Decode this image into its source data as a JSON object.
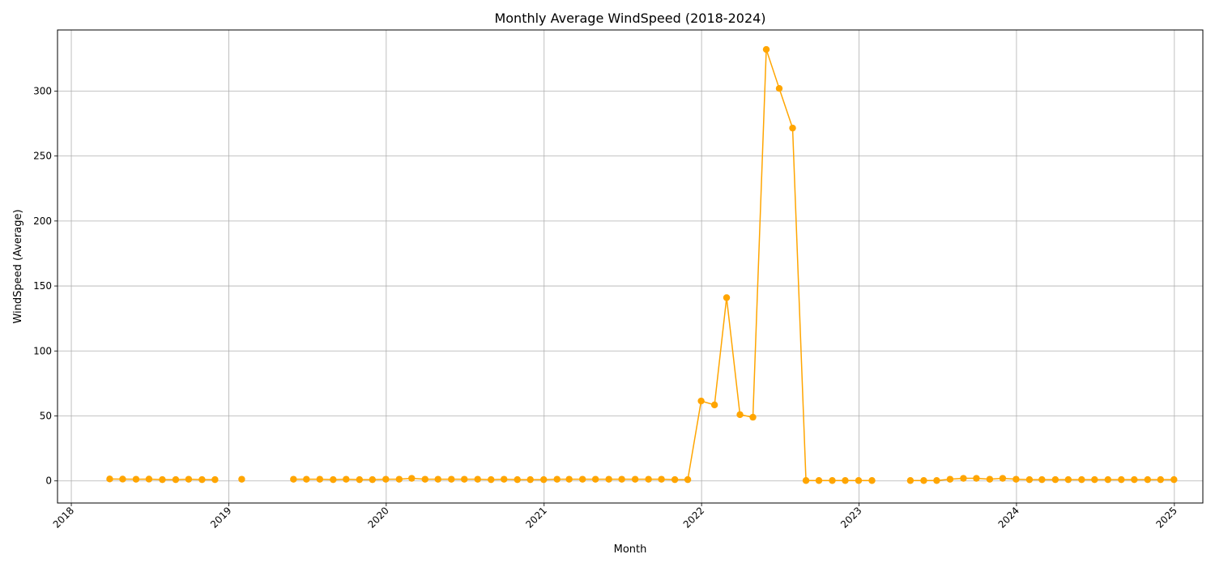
{
  "chart_data": {
    "type": "line",
    "title": "Monthly Average WindSpeed (2018-2024)",
    "xlabel": "Month",
    "ylabel": "WindSpeed (Average)",
    "x_axis": "date",
    "xlim": [
      "2017-11-30",
      "2025-03-08"
    ],
    "ylim": [
      -17,
      347
    ],
    "xticks": [
      "2018",
      "2019",
      "2020",
      "2021",
      "2022",
      "2023",
      "2024",
      "2025"
    ],
    "yticks": [
      0,
      50,
      100,
      150,
      200,
      250,
      300
    ],
    "grid": true,
    "color": "#FFA500",
    "marker": "circle",
    "series": [
      {
        "segments": [
          [
            [
              "2018-03-31",
              1.5
            ],
            [
              "2018-04-30",
              1.4
            ],
            [
              "2018-05-31",
              1.3
            ],
            [
              "2018-06-30",
              1.4
            ],
            [
              "2018-07-31",
              1.0
            ],
            [
              "2018-08-31",
              1.0
            ],
            [
              "2018-09-30",
              1.3
            ],
            [
              "2018-10-31",
              1.0
            ],
            [
              "2018-11-30",
              1.0
            ]
          ],
          [
            [
              "2019-01-31",
              1.3
            ]
          ],
          [
            [
              "2019-05-31",
              1.3
            ],
            [
              "2019-06-30",
              1.3
            ],
            [
              "2019-07-31",
              1.3
            ],
            [
              "2019-08-31",
              1.0
            ],
            [
              "2019-09-30",
              1.3
            ],
            [
              "2019-10-31",
              1.0
            ],
            [
              "2019-11-30",
              1.0
            ],
            [
              "2019-12-31",
              1.3
            ],
            [
              "2020-01-31",
              1.3
            ],
            [
              "2020-02-29",
              2.0
            ],
            [
              "2020-03-31",
              1.3
            ],
            [
              "2020-04-30",
              1.3
            ],
            [
              "2020-05-31",
              1.3
            ],
            [
              "2020-06-30",
              1.3
            ],
            [
              "2020-07-31",
              1.3
            ],
            [
              "2020-08-31",
              1.0
            ],
            [
              "2020-09-30",
              1.3
            ],
            [
              "2020-10-31",
              1.0
            ],
            [
              "2020-11-30",
              1.0
            ],
            [
              "2020-12-31",
              1.0
            ],
            [
              "2021-01-31",
              1.3
            ],
            [
              "2021-02-28",
              1.3
            ],
            [
              "2021-03-31",
              1.3
            ],
            [
              "2021-04-30",
              1.3
            ],
            [
              "2021-05-31",
              1.3
            ],
            [
              "2021-06-30",
              1.3
            ],
            [
              "2021-07-31",
              1.3
            ],
            [
              "2021-08-31",
              1.3
            ],
            [
              "2021-09-30",
              1.3
            ],
            [
              "2021-10-31",
              1.0
            ],
            [
              "2021-11-30",
              1.0
            ],
            [
              "2021-12-31",
              61.5
            ],
            [
              "2022-01-31",
              58.5
            ],
            [
              "2022-02-28",
              141.0
            ],
            [
              "2022-03-31",
              51.0
            ],
            [
              "2022-04-30",
              49.0
            ],
            [
              "2022-05-31",
              332.0
            ],
            [
              "2022-06-30",
              302.0
            ],
            [
              "2022-07-31",
              271.5
            ],
            [
              "2022-08-31",
              0.3
            ],
            [
              "2022-09-30",
              0.3
            ],
            [
              "2022-10-31",
              0.3
            ],
            [
              "2022-11-30",
              0.3
            ],
            [
              "2022-12-31",
              0.3
            ],
            [
              "2023-01-31",
              0.3
            ]
          ],
          [
            [
              "2023-04-30",
              0.3
            ],
            [
              "2023-05-31",
              0.3
            ],
            [
              "2023-06-30",
              0.3
            ],
            [
              "2023-07-31",
              1.3
            ],
            [
              "2023-08-31",
              2.0
            ],
            [
              "2023-09-30",
              2.0
            ],
            [
              "2023-10-31",
              1.3
            ],
            [
              "2023-11-30",
              2.0
            ],
            [
              "2023-12-31",
              1.3
            ],
            [
              "2024-01-31",
              1.0
            ],
            [
              "2024-02-29",
              1.0
            ],
            [
              "2024-03-31",
              1.0
            ],
            [
              "2024-04-30",
              1.0
            ],
            [
              "2024-05-31",
              1.0
            ],
            [
              "2024-06-30",
              1.0
            ],
            [
              "2024-07-31",
              1.0
            ],
            [
              "2024-08-31",
              1.0
            ],
            [
              "2024-09-30",
              1.0
            ],
            [
              "2024-10-31",
              1.0
            ],
            [
              "2024-11-30",
              1.0
            ],
            [
              "2024-12-31",
              1.0
            ]
          ]
        ]
      }
    ]
  }
}
